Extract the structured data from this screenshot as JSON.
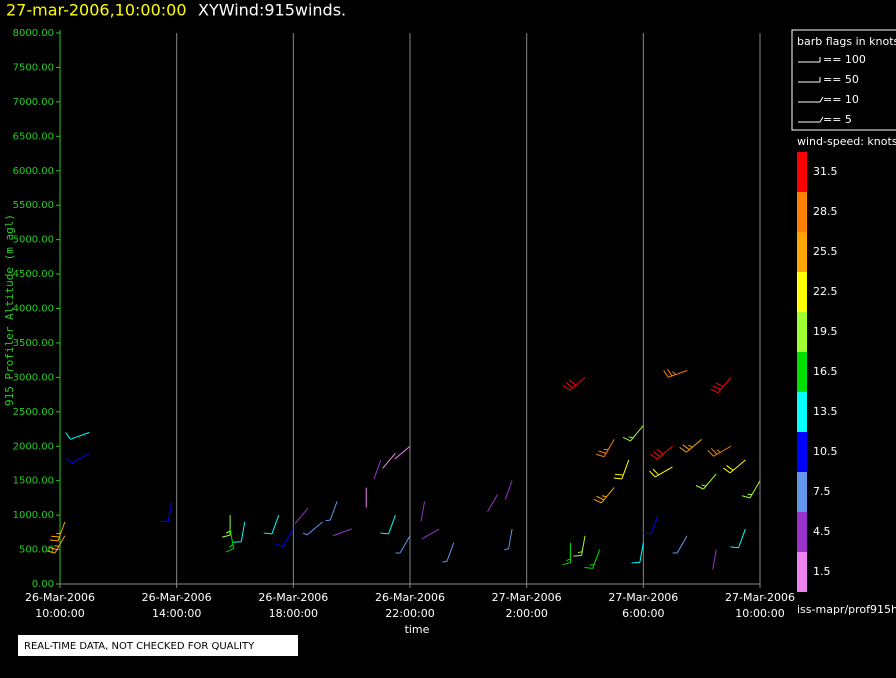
{
  "chart_data": {
    "type": "barb",
    "title_time": "27-mar-2006,10:00:00",
    "title": "XYWind:915winds.",
    "y_label": "915 Profiler Altitude (m agl)",
    "x_label": "time",
    "ylim": [
      0,
      8000
    ],
    "yticks": [
      {
        "value": 0,
        "label": "0.00"
      },
      {
        "value": 500,
        "label": "500.00"
      },
      {
        "value": 1000,
        "label": "1000.00"
      },
      {
        "value": 1500,
        "label": "1500.00"
      },
      {
        "value": 2000,
        "label": "2000.00"
      },
      {
        "value": 2500,
        "label": "2500.00"
      },
      {
        "value": 3000,
        "label": "3000.00"
      },
      {
        "value": 3500,
        "label": "3500.00"
      },
      {
        "value": 4000,
        "label": "4000.00"
      },
      {
        "value": 4500,
        "label": "4500.00"
      },
      {
        "value": 5000,
        "label": "5000.00"
      },
      {
        "value": 5500,
        "label": "5500.00"
      },
      {
        "value": 6000,
        "label": "6000.00"
      },
      {
        "value": 6500,
        "label": "6500.00"
      },
      {
        "value": 7000,
        "label": "7000.00"
      },
      {
        "value": 7500,
        "label": "7500.00"
      },
      {
        "value": 8000,
        "label": "8000.00"
      }
    ],
    "xlim": [
      "2006-03-26T10:00",
      "2006-03-27T10:00"
    ],
    "xticks": [
      {
        "value": "2006-03-26T10:00",
        "label": [
          "26-Mar-2006",
          "10:00:00"
        ]
      },
      {
        "value": "2006-03-26T14:00",
        "label": [
          "26-Mar-2006",
          "14:00:00"
        ]
      },
      {
        "value": "2006-03-26T18:00",
        "label": [
          "26-Mar-2006",
          "18:00:00"
        ]
      },
      {
        "value": "2006-03-26T22:00",
        "label": [
          "26-Mar-2006",
          "22:00:00"
        ]
      },
      {
        "value": "2006-03-27T02:00",
        "label": [
          "27-Mar-2006",
          "2:00:00"
        ]
      },
      {
        "value": "2006-03-27T06:00",
        "label": [
          "27-Mar-2006",
          "6:00:00"
        ]
      },
      {
        "value": "2006-03-27T10:00",
        "label": [
          "27-Mar-2006",
          "10:00:00"
        ]
      }
    ],
    "grid": true,
    "barbs": {
      "x": [
        "2006-03-26T10:10",
        "2006-03-26T10:10",
        "2006-03-26T11:00",
        "2006-03-26T11:00",
        "2006-03-26T13:50",
        "2006-03-26T15:50",
        "2006-03-26T15:50",
        "2006-03-26T16:20",
        "2006-03-26T17:30",
        "2006-03-26T18:00",
        "2006-03-26T18:30",
        "2006-03-26T19:00",
        "2006-03-26T19:30",
        "2006-03-26T20:00",
        "2006-03-26T20:30",
        "2006-03-26T21:00",
        "2006-03-26T21:30",
        "2006-03-26T21:30",
        "2006-03-26T22:00",
        "2006-03-26T22:00",
        "2006-03-26T22:30",
        "2006-03-26T23:00",
        "2006-03-26T23:30",
        "2006-03-27T01:00",
        "2006-03-27T01:30",
        "2006-03-27T01:30",
        "2006-03-27T03:30",
        "2006-03-27T04:00",
        "2006-03-27T04:30",
        "2006-03-27T04:00",
        "2006-03-27T05:00",
        "2006-03-27T05:00",
        "2006-03-27T05:30",
        "2006-03-27T06:00",
        "2006-03-27T06:00",
        "2006-03-27T06:30",
        "2006-03-27T07:00",
        "2006-03-27T07:00",
        "2006-03-27T07:30",
        "2006-03-27T07:30",
        "2006-03-27T08:00",
        "2006-03-27T08:30",
        "2006-03-27T08:30",
        "2006-03-27T09:00",
        "2006-03-27T09:00",
        "2006-03-27T09:30",
        "2006-03-27T09:30",
        "2006-03-27T10:00"
      ],
      "y": [
        900,
        700,
        2200,
        1900,
        1200,
        1000,
        800,
        900,
        1000,
        800,
        1100,
        900,
        1200,
        800,
        1400,
        1800,
        1900,
        1000,
        2000,
        700,
        1200,
        800,
        600,
        1300,
        1500,
        800,
        600,
        700,
        500,
        3000,
        1400,
        2100,
        1800,
        600,
        2300,
        1000,
        2000,
        1700,
        3100,
        700,
        2100,
        1600,
        500,
        3000,
        2000,
        1800,
        800,
        1500
      ],
      "speed": [
        26,
        25,
        13,
        10,
        10,
        19,
        16,
        13,
        13,
        10,
        4,
        7,
        7,
        4,
        1.5,
        4,
        1.5,
        13,
        1.5,
        7,
        4,
        4,
        7,
        4,
        4,
        7,
        16,
        19,
        16,
        31.5,
        25,
        28,
        22,
        13,
        19,
        10,
        31,
        22,
        28,
        7,
        25,
        19,
        4,
        31,
        28,
        22,
        13,
        19
      ],
      "direction": [
        200,
        210,
        250,
        240,
        190,
        180,
        170,
        190,
        200,
        210,
        220,
        230,
        200,
        250,
        180,
        200,
        220,
        200,
        230,
        210,
        190,
        240,
        200,
        210,
        200,
        190,
        180,
        190,
        200,
        230,
        220,
        210,
        200,
        190,
        220,
        200,
        230,
        240,
        250,
        210,
        230,
        220,
        190,
        220,
        240,
        230,
        200,
        210
      ]
    },
    "barb_legend": {
      "title": "barb flags in knots",
      "items": [
        "== 100",
        "== 50",
        "== 10",
        "== 5"
      ]
    },
    "colorbar": {
      "title": "wind-speed: knots",
      "levels": [
        31.5,
        28.5,
        25.5,
        22.5,
        19.5,
        16.5,
        13.5,
        10.5,
        7.5,
        4.5,
        1.5
      ],
      "colors": [
        "#ff0000",
        "#ff8000",
        "#ffa500",
        "#ffff00",
        "#a0ff30",
        "#00e000",
        "#00ffff",
        "#0000ff",
        "#6495ed",
        "#9932cc",
        "#ee82ee"
      ]
    },
    "source": "iss-mapr/prof915h",
    "note": "REAL-TIME DATA, NOT CHECKED FOR QUALITY"
  }
}
